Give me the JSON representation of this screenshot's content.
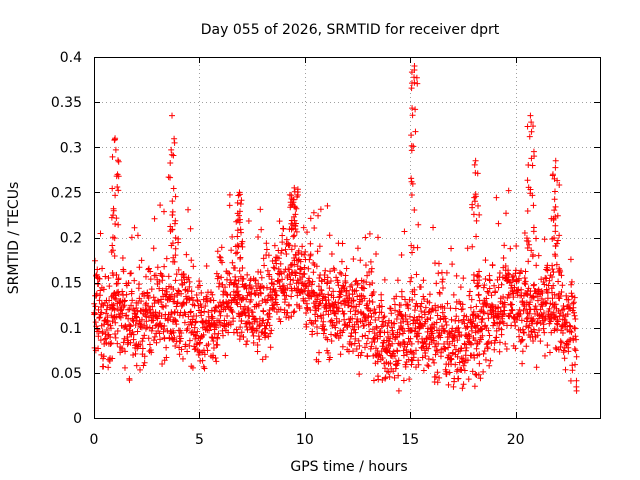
{
  "chart_data": {
    "type": "scatter",
    "title": "Day 055 of 2026, SRMTID for receiver dprt",
    "xlabel": "GPS time / hours",
    "ylabel": "SRMTID / TECUs",
    "xlim": [
      0,
      24
    ],
    "ylim": [
      0,
      0.4
    ],
    "x_ticks": [
      0,
      5,
      10,
      15,
      20
    ],
    "x_tick_labels": [
      "0",
      "5",
      "10",
      "15",
      "20"
    ],
    "y_ticks": [
      0,
      0.05,
      0.1,
      0.15,
      0.2,
      0.25,
      0.3,
      0.35,
      0.4
    ],
    "y_tick_labels": [
      "0",
      "0.05",
      "0.1",
      "0.15",
      "0.2",
      "0.25",
      "0.3",
      "0.35",
      "0.4"
    ],
    "grid": true,
    "marker": "+",
    "marker_color": "#ff0000",
    "data_range_hours": [
      0,
      22.9
    ],
    "baseline_profile": {
      "x": [
        0,
        0.5,
        1,
        1.5,
        2,
        2.5,
        3,
        3.5,
        4,
        4.5,
        5,
        5.5,
        6,
        6.5,
        7,
        7.5,
        8,
        8.5,
        9,
        9.5,
        10,
        10.5,
        11,
        11.5,
        12,
        12.5,
        13,
        13.5,
        14,
        14.5,
        15,
        15.5,
        16,
        16.5,
        17,
        17.5,
        18,
        18.5,
        19,
        19.5,
        20,
        20.5,
        21,
        21.5,
        22,
        22.5,
        23
      ],
      "y": [
        0.12,
        0.11,
        0.12,
        0.1,
        0.1,
        0.11,
        0.12,
        0.12,
        0.12,
        0.12,
        0.1,
        0.1,
        0.12,
        0.14,
        0.12,
        0.12,
        0.12,
        0.13,
        0.15,
        0.16,
        0.15,
        0.13,
        0.12,
        0.12,
        0.12,
        0.12,
        0.11,
        0.09,
        0.08,
        0.09,
        0.1,
        0.1,
        0.1,
        0.09,
        0.08,
        0.08,
        0.09,
        0.1,
        0.12,
        0.13,
        0.13,
        0.12,
        0.12,
        0.13,
        0.12,
        0.1,
        0.08
      ]
    },
    "peak_events": [
      {
        "x": 1.0,
        "y_max": 0.31
      },
      {
        "x": 3.7,
        "y_max": 0.335
      },
      {
        "x": 6.9,
        "y_max": 0.25
      },
      {
        "x": 9.5,
        "y_max": 0.255
      },
      {
        "x": 15.2,
        "y_max": 0.39
      },
      {
        "x": 18.1,
        "y_max": 0.285
      },
      {
        "x": 20.7,
        "y_max": 0.335
      },
      {
        "x": 21.9,
        "y_max": 0.285
      }
    ]
  }
}
